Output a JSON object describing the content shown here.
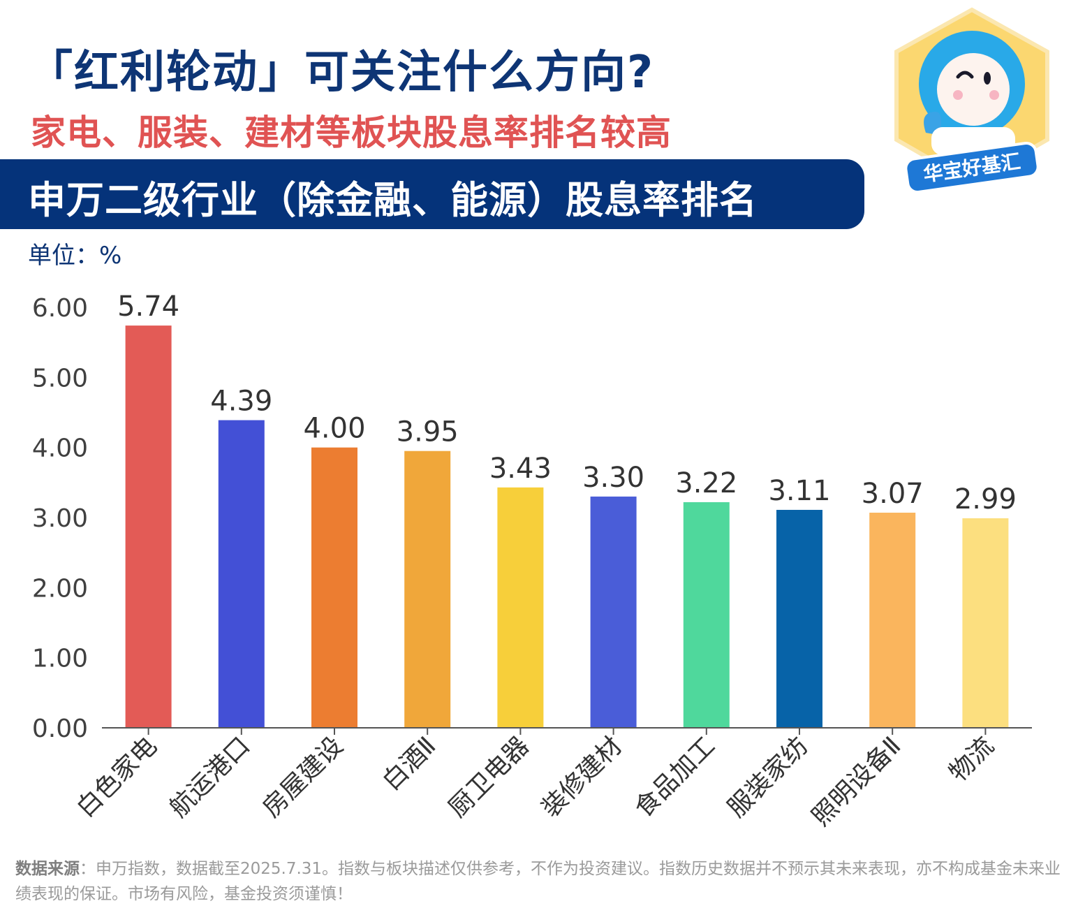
{
  "header": {
    "title": "「红利轮动」可关注什么方向?",
    "subtitle": "家电、服装、建材等板块股息率排名较高",
    "banner": "申万二级行业（除金融、能源）股息率排名",
    "unit": "单位：%"
  },
  "logo": {
    "text": "华宝好基汇",
    "icon": "mascot-thumbs-up"
  },
  "chart_data": {
    "type": "bar",
    "title": "申万二级行业（除金融、能源）股息率排名",
    "ylabel": "%",
    "ylim": [
      0,
      6
    ],
    "yticks": [
      "0.00",
      "1.00",
      "2.00",
      "3.00",
      "4.00",
      "5.00",
      "6.00"
    ],
    "grid": false,
    "categories": [
      "白色家电",
      "航运港口",
      "房屋建设",
      "白酒Ⅱ",
      "厨卫电器",
      "装修建材",
      "食品加工",
      "服装家纺",
      "照明设备Ⅱ",
      "物流"
    ],
    "values": [
      5.74,
      4.39,
      4.0,
      3.95,
      3.43,
      3.3,
      3.22,
      3.11,
      3.07,
      2.99
    ],
    "value_labels": [
      "5.74",
      "4.39",
      "4.00",
      "3.95",
      "3.43",
      "3.30",
      "3.22",
      "3.11",
      "3.07",
      "2.99"
    ],
    "colors": [
      "#e35b56",
      "#4350d6",
      "#ec7d31",
      "#f0a73a",
      "#f7cf3a",
      "#4a5dd8",
      "#4fd89c",
      "#0763a8",
      "#fab55d",
      "#fcdf7f"
    ]
  },
  "footer": {
    "source_label": "数据来源",
    "text": "：申万指数，数据截至2025.7.31。指数与板块描述仅供参考，不作为投资建议。指数历史数据并不预示其未来表现，亦不构成基金未来业绩表现的保证。市场有风险，基金投资须谨慎！"
  }
}
